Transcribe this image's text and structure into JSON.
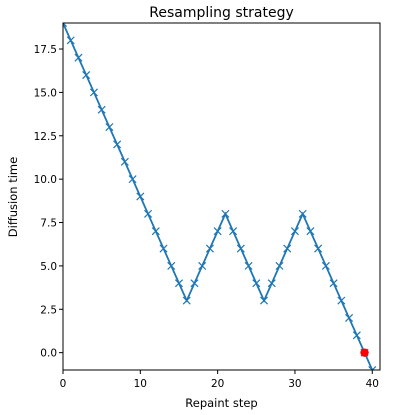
{
  "chart_data": {
    "type": "line",
    "title": "Resampling strategy",
    "xlabel": "Repaint step",
    "ylabel": "Diffusion time",
    "xlim": [
      0,
      41
    ],
    "ylim": [
      -1,
      19
    ],
    "xticks": [
      0,
      10,
      20,
      30,
      40
    ],
    "xtick_labels": [
      "0",
      "10",
      "20",
      "30",
      "40"
    ],
    "yticks": [
      0.0,
      2.5,
      5.0,
      7.5,
      10.0,
      12.5,
      15.0,
      17.5
    ],
    "ytick_labels": [
      "0.0",
      "2.5",
      "5.0",
      "7.5",
      "10.0",
      "12.5",
      "15.0",
      "17.5"
    ],
    "grid": false,
    "line_color": "#1f77b4",
    "highlight_color": "#ff0000",
    "series": [
      {
        "x": [
          0,
          1,
          2,
          3,
          4,
          5,
          6,
          7,
          8,
          9,
          10,
          11,
          12,
          13,
          14,
          15,
          16,
          17,
          18,
          19,
          20,
          21,
          22,
          23,
          24,
          25,
          26,
          27,
          28,
          29,
          30,
          31,
          32,
          33,
          34,
          35,
          36,
          37,
          38,
          39,
          40
        ],
        "y": [
          19,
          18,
          17,
          16,
          15,
          14,
          13,
          12,
          11,
          10,
          9,
          8,
          7,
          6,
          5,
          4,
          3,
          4,
          5,
          6,
          7,
          8,
          7,
          6,
          5,
          4,
          3,
          4,
          5,
          6,
          7,
          8,
          7,
          6,
          5,
          4,
          3,
          2,
          1,
          0,
          -1
        ],
        "marker": "x"
      }
    ],
    "highlight_point": {
      "x": 39,
      "y": 0
    }
  }
}
